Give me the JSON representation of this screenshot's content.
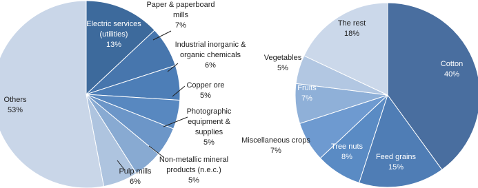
{
  "chart_data": [
    {
      "type": "pie",
      "categories": [
        "Electric services (utilities)",
        "Paper & paperboard mills",
        "Industrial inorganic & organic chemicals",
        "Copper ore",
        "Photographic equipment & supplies",
        "Non-metallic mineral products (n.e.c.)",
        "Pulp mills",
        "Others"
      ],
      "values": [
        13,
        7,
        6,
        5,
        5,
        5,
        6,
        53
      ],
      "value_labels": [
        "13%",
        "7%",
        "6%",
        "5%",
        "5%",
        "5%",
        "6%",
        "53%"
      ],
      "colors": [
        "#3d6a9c",
        "#4776ad",
        "#4d7eb7",
        "#5888c0",
        "#6c96c8",
        "#88aad2",
        "#aec4df",
        "#c9d6e8"
      ]
    },
    {
      "type": "pie",
      "categories": [
        "Cotton",
        "Feed grains",
        "Tree nuts",
        "Miscellaneous crops",
        "Fruits",
        "Vegetables",
        "The rest"
      ],
      "values": [
        40,
        15,
        8,
        7,
        7,
        5,
        18
      ],
      "value_labels": [
        "40%",
        "15%",
        "8%",
        "7%",
        "7%",
        "5%",
        "18%"
      ],
      "colors": [
        "#496e9f",
        "#4f7db5",
        "#5a8bc4",
        "#6e9ad0",
        "#8fb0d8",
        "#b2c7e2",
        "#cbd8ea"
      ]
    }
  ]
}
